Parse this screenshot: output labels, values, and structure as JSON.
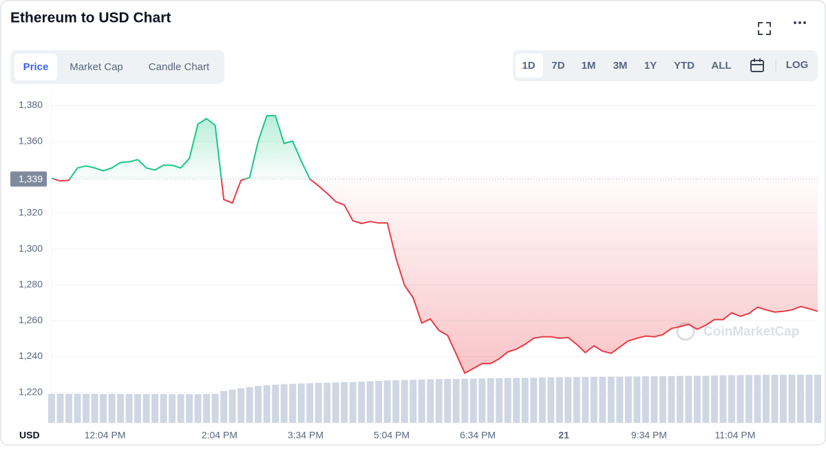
{
  "chart_data": {
    "type": "line",
    "title": "Ethereum to USD Chart",
    "tabs": [
      "Price",
      "Market Cap",
      "Candle Chart"
    ],
    "active_tab": 0,
    "ranges": [
      "1D",
      "7D",
      "1M",
      "3M",
      "1Y",
      "YTD",
      "ALL"
    ],
    "active_range": 0,
    "log_button": "LOG",
    "currency_label": "USD",
    "watermark": "CoinMarketCap",
    "up_color": "#16c784",
    "down_color": "#ea3943",
    "volume_color": "#cfd6e4",
    "ylim": [
      1203,
      1389
    ],
    "yticks": [
      {
        "value": 1220,
        "label": "1,220"
      },
      {
        "value": 1240,
        "label": "1,240"
      },
      {
        "value": 1260,
        "label": "1,260"
      },
      {
        "value": 1280,
        "label": "1,280"
      },
      {
        "value": 1300,
        "label": "1,300"
      },
      {
        "value": 1320,
        "label": "1,320"
      },
      {
        "value": 1340,
        "label": "1,340"
      },
      {
        "value": 1360,
        "label": "1,360"
      },
      {
        "value": 1380,
        "label": "1,380"
      }
    ],
    "baseline": {
      "value": 1339,
      "label": "1,339"
    },
    "xticks": [
      {
        "value": 6.2,
        "label": "12:04 PM"
      },
      {
        "value": 19.5,
        "label": "2:04 PM"
      },
      {
        "value": 29.5,
        "label": "3:34 PM"
      },
      {
        "value": 39.5,
        "label": "5:04 PM"
      },
      {
        "value": 49.5,
        "label": "6:34 PM"
      },
      {
        "value": 59.5,
        "label": "21"
      },
      {
        "value": 69.4,
        "label": "9:34 PM"
      },
      {
        "value": 79.4,
        "label": "11:04 PM"
      }
    ],
    "grid": true,
    "values": [
      1339.4,
      1337.9,
      1338.3,
      1345.2,
      1346.3,
      1345.2,
      1343.6,
      1345.2,
      1348.2,
      1348.6,
      1349.8,
      1345.2,
      1344.0,
      1346.7,
      1346.7,
      1345.2,
      1350.5,
      1369.7,
      1372.7,
      1368.9,
      1327.6,
      1325.6,
      1338.3,
      1339.8,
      1360.1,
      1374.3,
      1374.3,
      1358.9,
      1360.1,
      1349.0,
      1339.0,
      1335.2,
      1331.0,
      1326.4,
      1324.5,
      1315.7,
      1314.2,
      1315.3,
      1314.5,
      1314.5,
      1295.0,
      1279.7,
      1272.8,
      1258.7,
      1261.0,
      1254.5,
      1251.8,
      1241.4,
      1230.7,
      1233.4,
      1236.1,
      1236.1,
      1238.8,
      1242.6,
      1244.1,
      1246.8,
      1250.2,
      1251.0,
      1251.0,
      1250.2,
      1250.6,
      1246.8,
      1242.2,
      1246.0,
      1243.0,
      1241.8,
      1245.3,
      1248.7,
      1250.2,
      1251.4,
      1251.0,
      1252.2,
      1255.6,
      1256.7,
      1257.9,
      1255.2,
      1257.5,
      1260.6,
      1260.6,
      1264.4,
      1262.5,
      1264.0,
      1267.5,
      1266.0,
      1264.8,
      1265.2,
      1266.0,
      1267.9,
      1266.7,
      1265.2
    ],
    "volume_values": [
      1219.2,
      1219.3,
      1219.2,
      1219.3,
      1219.2,
      1219.2,
      1219.1,
      1219.2,
      1219.1,
      1219.1,
      1219.1,
      1219.1,
      1219.1,
      1219.1,
      1219.0,
      1219.0,
      1219.0,
      1219.0,
      1219.1,
      1219.2,
      1220.8,
      1221.5,
      1222.3,
      1223.0,
      1223.6,
      1224.0,
      1224.3,
      1224.6,
      1224.8,
      1225.0,
      1225.1,
      1225.3,
      1225.4,
      1225.5,
      1225.7,
      1225.8,
      1226.0,
      1226.2,
      1226.4,
      1226.6,
      1226.8,
      1226.9,
      1227.0,
      1227.2,
      1227.3,
      1227.4,
      1227.5,
      1227.5,
      1227.6,
      1227.7,
      1227.8,
      1227.9,
      1227.9,
      1228.0,
      1228.1,
      1228.1,
      1228.2,
      1228.3,
      1228.4,
      1228.5,
      1228.5,
      1228.6,
      1228.6,
      1228.7,
      1228.7,
      1228.8,
      1228.8,
      1228.9,
      1228.9,
      1229.0,
      1229.0,
      1229.1,
      1229.1,
      1229.2,
      1229.2,
      1229.3,
      1229.3,
      1229.4,
      1229.5,
      1229.6,
      1229.6,
      1229.7,
      1229.7,
      1229.8,
      1229.8,
      1229.8,
      1229.9,
      1229.9,
      1229.9,
      1229.9
    ]
  }
}
